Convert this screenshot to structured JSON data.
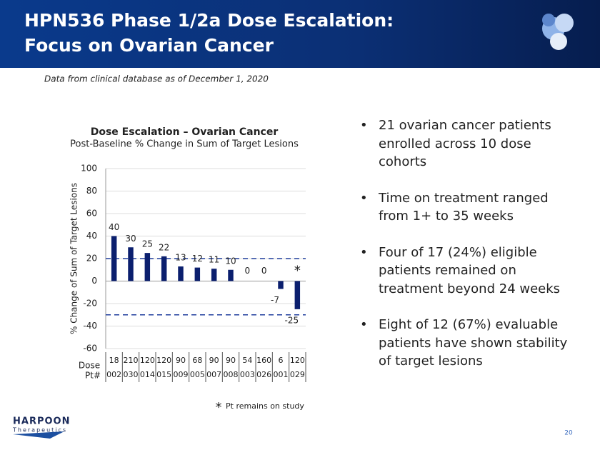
{
  "header": {
    "title_lines": [
      "HPN536 Phase 1/2a Dose Escalation:",
      "Focus on Ovarian Cancer"
    ]
  },
  "note": "Data from clinical database as of December 1, 2020",
  "chart_data": {
    "type": "bar",
    "title": "Dose Escalation – Ovarian Cancer",
    "subtitle": "Post-Baseline % Change in Sum of Target Lesions",
    "ylabel": "% Change of Sum of Target Lesions",
    "category_label": "Pt#",
    "categories": [
      "002",
      "030",
      "014",
      "015",
      "009",
      "005",
      "007",
      "008",
      "003",
      "026",
      "001",
      "029"
    ],
    "dose_label": "Dose",
    "doses": [
      "18",
      "210",
      "120",
      "120",
      "90",
      "68",
      "90",
      "90",
      "54",
      "160",
      "6",
      "120"
    ],
    "values": [
      40,
      30,
      25,
      22,
      13,
      12,
      11,
      10,
      0,
      0,
      -7,
      -25
    ],
    "color": "#0b1f6e",
    "ylim": [
      -60,
      100
    ],
    "yticks": [
      -60,
      -40,
      -20,
      0,
      20,
      40,
      60,
      80,
      100
    ],
    "grid": true,
    "reference_lines": [
      20,
      -30
    ],
    "reference_color": "#1f3d9c",
    "on_study": [
      false,
      false,
      false,
      false,
      false,
      false,
      false,
      false,
      false,
      false,
      false,
      true
    ],
    "study_marker": "*",
    "study_marker_label": "Pt remains on study"
  },
  "bullets": [
    "21 ovarian cancer patients enrolled across 10 dose cohorts",
    "Time on treatment ranged from 1+ to 35 weeks",
    "Four of 17 (24%) eligible patients remained on treatment beyond 24 weeks",
    "Eight of 12 (67%) evaluable patients have shown stability of target lesions"
  ],
  "footer": {
    "logo": "HARPOON",
    "logo_sub": "Therapeutics",
    "page": "20"
  }
}
